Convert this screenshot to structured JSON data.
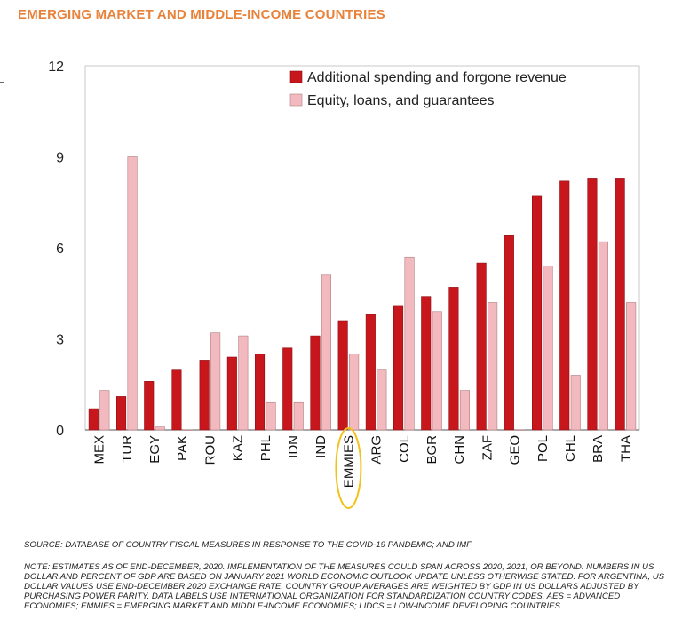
{
  "title": "EMERGING MARKET AND MIDDLE-INCOME COUNTRIES",
  "chart_data": {
    "type": "bar",
    "categories": [
      "MEX",
      "TUR",
      "EGY",
      "PAK",
      "ROU",
      "KAZ",
      "PHL",
      "IDN",
      "IND",
      "EMMIES",
      "ARG",
      "COL",
      "BGR",
      "CHN",
      "ZAF",
      "GEO",
      "POL",
      "CHL",
      "BRA",
      "THA"
    ],
    "series": [
      {
        "name": "Additional spending and forgone revenue",
        "color": "#c8161d",
        "values": [
          0.7,
          1.1,
          1.6,
          2.0,
          2.3,
          2.4,
          2.5,
          2.7,
          3.1,
          3.6,
          3.8,
          4.1,
          4.4,
          4.7,
          5.5,
          6.4,
          7.7,
          8.2,
          8.3,
          8.3
        ]
      },
      {
        "name": "Equity, loans, and guarantees",
        "color": "#f2b9bf",
        "values": [
          1.3,
          9.0,
          0.1,
          0.0,
          3.2,
          3.1,
          0.9,
          0.9,
          5.1,
          2.5,
          2.0,
          5.7,
          3.9,
          1.3,
          4.2,
          0.0,
          5.4,
          1.8,
          6.2,
          4.2
        ]
      }
    ],
    "ylim": [
      0,
      12
    ],
    "yticks": [
      0,
      3,
      6,
      9,
      12
    ],
    "highlight_category": "EMMIES",
    "highlight_color": "#f2c21b",
    "legend_position": "top-right",
    "grid": false
  },
  "source": "SOURCE: DATABASE OF COUNTRY FISCAL MEASURES IN RESPONSE TO THE COVID-19 PANDEMIC; AND IMF",
  "note": "NOTE: ESTIMATES AS OF END-DECEMBER, 2020. IMPLEMENTATION OF THE MEASURES COULD SPAN ACROSS 2020, 2021, OR BEYOND. NUMBERS IN US DOLLAR AND PERCENT OF GDP ARE BASED ON JANUARY 2021 WORLD ECONOMIC OUTLOOK UPDATE UNLESS OTHERWISE STATED. FOR ARGENTINA, US DOLLAR VALUES USE END-DECEMBER 2020 EXCHANGE RATE. COUNTRY GROUP AVERAGES ARE WEIGHTED BY GDP IN US DOLLARS ADJUSTED BY PURCHASING POWER PARITY. DATA LABELS USE INTERNATIONAL ORGANIZATION FOR STANDARDIZATION COUNTRY CODES. AES = ADVANCED ECONOMIES; EMMIES = EMERGING MARKET AND MIDDLE-INCOME ECONOMIES; LIDCS = LOW-INCOME DEVELOPING COUNTRIES"
}
